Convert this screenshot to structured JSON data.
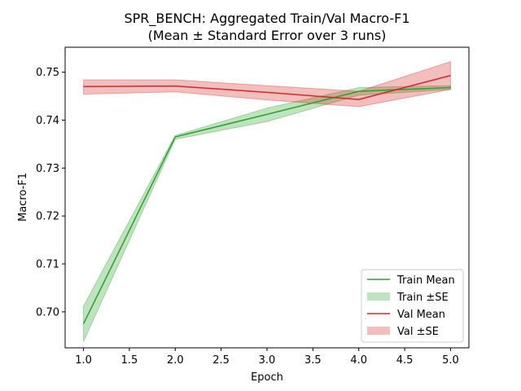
{
  "chart_data": {
    "type": "line",
    "title_line1": "SPR_BENCH: Aggregated Train/Val Macro-F1",
    "title_line2": "(Mean ± Standard Error over 3 runs)",
    "xlabel": "Epoch",
    "ylabel": "Macro-F1",
    "xlim": [
      0.8,
      5.2
    ],
    "ylim": [
      0.6925,
      0.7552
    ],
    "x_ticks": [
      "1.0",
      "1.5",
      "2.0",
      "2.5",
      "3.0",
      "3.5",
      "4.0",
      "4.5",
      "5.0"
    ],
    "y_ticks": [
      "0.70",
      "0.71",
      "0.72",
      "0.73",
      "0.74",
      "0.75"
    ],
    "x": [
      1,
      2,
      3,
      4,
      5
    ],
    "series": [
      {
        "name": "Train Mean",
        "band_name": "Train ±SE",
        "color": "#2ca02c",
        "band_color": "#2ca02c",
        "values": [
          0.6975,
          0.7365,
          0.7412,
          0.746,
          0.7468
        ],
        "lower": [
          0.6938,
          0.736,
          0.7397,
          0.7452,
          0.7464
        ],
        "upper": [
          0.7012,
          0.7368,
          0.7425,
          0.7468,
          0.7472
        ]
      },
      {
        "name": "Val Mean",
        "band_name": "Val ±SE",
        "color": "#d62728",
        "band_color": "#d62728",
        "values": [
          0.747,
          0.7471,
          0.7458,
          0.7443,
          0.7493
        ],
        "lower": [
          0.7454,
          0.7459,
          0.7442,
          0.7428,
          0.7464
        ],
        "upper": [
          0.7484,
          0.7484,
          0.7472,
          0.746,
          0.7522
        ]
      }
    ],
    "legend": {
      "placement": "lower-right",
      "entries": [
        "Train Mean",
        "Train ±SE",
        "Val Mean",
        "Val ±SE"
      ]
    },
    "grid": false
  }
}
